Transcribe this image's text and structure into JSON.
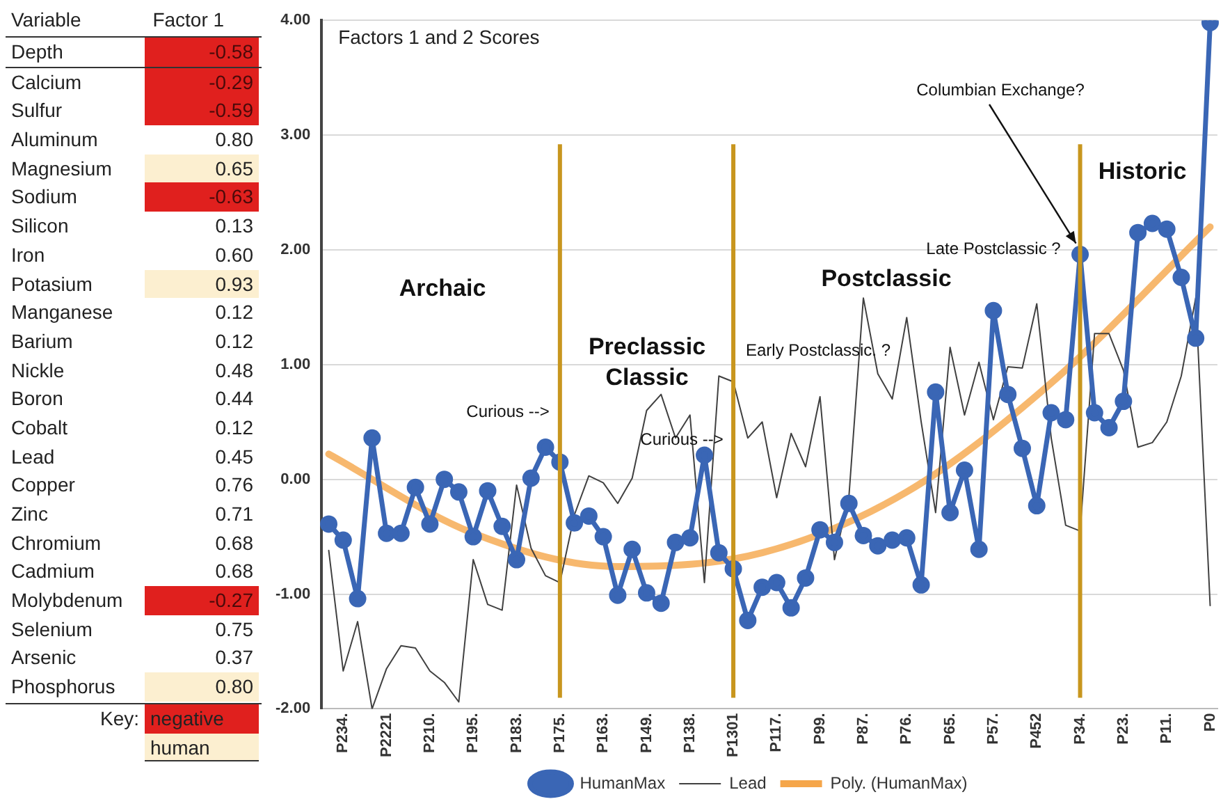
{
  "chart_data": [
    {
      "type": "other",
      "xlabel": "Variable",
      "ylabel": "Factor 1",
      "annotations": [
        "Key:",
        "negative",
        "human"
      ],
      "categories": [
        "Depth",
        "Calcium",
        "Sulfur",
        "Aluminum",
        "Magnesium",
        "Sodium",
        "Silicon",
        "Iron",
        "Potasium",
        "Manganese",
        "Barium",
        "Nickle",
        "Boron",
        "Cobalt",
        "Lead",
        "Copper",
        "Zinc",
        "Chromium",
        "Cadmium",
        "Molybdenum",
        "Selenium",
        "Arsenic",
        "Phosphorus"
      ],
      "values": [
        -0.58,
        -0.29,
        -0.59,
        0.8,
        0.65,
        -0.63,
        0.13,
        0.6,
        0.93,
        0.12,
        0.12,
        0.48,
        0.44,
        0.12,
        0.45,
        0.76,
        0.71,
        0.68,
        0.68,
        -0.27,
        0.75,
        0.37,
        0.8
      ],
      "value_labels": [
        "-0.58",
        "-0.29",
        "-0.59",
        "0.80",
        "0.65",
        "-0.63",
        "0.13",
        "0.60",
        "0.93",
        "0.12",
        "0.12",
        "0.48",
        "0.44",
        "0.12",
        "0.45",
        "0.76",
        "0.71",
        "0.68",
        "0.68",
        "-0.27",
        "0.75",
        "0.37",
        "0.80"
      ],
      "colors": [
        "#e0201e",
        "#e0201e",
        "#e0201e",
        "#ffffff",
        "#fcefd0",
        "#e0201e",
        "#ffffff",
        "#ffffff",
        "#fcefd0",
        "#ffffff",
        "#ffffff",
        "#ffffff",
        "#ffffff",
        "#ffffff",
        "#ffffff",
        "#ffffff",
        "#ffffff",
        "#ffffff",
        "#ffffff",
        "#e0201e",
        "#ffffff",
        "#ffffff",
        "#fcefd0"
      ]
    },
    {
      "type": "line",
      "title": "Factors 1 and 2 Scores",
      "legend": "bottom",
      "grid": "y",
      "line_style": "solid",
      "categories": [
        null,
        "P234.",
        null,
        null,
        "P2221",
        null,
        null,
        "P210.",
        null,
        null,
        "P195.",
        null,
        null,
        "P183.",
        null,
        null,
        "P175.",
        null,
        null,
        "P163.",
        null,
        null,
        "P149.",
        null,
        null,
        "P138.",
        null,
        null,
        "P1301",
        null,
        null,
        "P117.",
        null,
        null,
        "P99.",
        null,
        null,
        "P87.",
        null,
        null,
        "P76.",
        null,
        null,
        "P65.",
        null,
        null,
        "P57.",
        null,
        null,
        "P452",
        null,
        null,
        "P34.",
        null,
        null,
        "P23.",
        null,
        null,
        "P11.",
        null,
        null,
        "P0"
      ],
      "ylim": [
        -2,
        4
      ],
      "yticks": [
        {
          "value": -2,
          "label": "-2.00"
        },
        {
          "value": -1,
          "label": "-1.00"
        },
        {
          "value": 0,
          "label": "0.00"
        },
        {
          "value": 1,
          "label": "1.00"
        },
        {
          "value": 2,
          "label": "2.00"
        },
        {
          "value": 3,
          "label": "3.00"
        },
        {
          "value": 4,
          "label": "4.00"
        }
      ],
      "series": [
        {
          "name": "HumanMax",
          "color": "#3a66b5",
          "marker": "circle",
          "values": [
            -0.39,
            -0.53,
            -1.04,
            0.36,
            -0.47,
            -0.47,
            -0.07,
            -0.39,
            0,
            -0.11,
            -0.5,
            -0.1,
            -0.41,
            -0.7,
            0.01,
            0.28,
            0.15,
            -0.38,
            -0.32,
            -0.5,
            -1.01,
            -0.61,
            -0.99,
            -1.08,
            -0.55,
            -0.51,
            0.21,
            -0.64,
            -0.78,
            -1.23,
            -0.94,
            -0.9,
            -1.12,
            -0.86,
            -0.44,
            -0.55,
            -0.21,
            -0.49,
            -0.58,
            -0.53,
            -0.51,
            -0.92,
            0.76,
            -0.29,
            0.08,
            -0.61,
            1.47,
            0.74,
            0.27,
            -0.23,
            0.58,
            0.52,
            1.96,
            0.58,
            0.45,
            0.68,
            2.15,
            2.23,
            2.18,
            1.76,
            1.23,
            3.98
          ]
        },
        {
          "name": "Lead",
          "color": "#404040",
          "marker": "none",
          "values": [
            -0.62,
            -1.67,
            -1.24,
            -2,
            -1.65,
            -1.45,
            -1.47,
            -1.67,
            -1.77,
            -1.94,
            -0.7,
            -1.09,
            -1.14,
            -0.05,
            -0.6,
            -0.84,
            -0.9,
            -0.31,
            0.03,
            -0.03,
            -0.21,
            0.01,
            0.6,
            0.74,
            0.36,
            0.56,
            -0.9,
            0.9,
            0.85,
            0.36,
            0.5,
            -0.16,
            0.4,
            0.11,
            0.72,
            -0.7,
            -0.15,
            1.58,
            0.92,
            0.7,
            1.41,
            0.5,
            -0.29,
            1.15,
            0.56,
            1.02,
            0.52,
            0.98,
            0.97,
            1.53,
            0.36,
            -0.4,
            -0.45,
            1.27,
            1.27,
            0.95,
            0.28,
            0.32,
            0.5,
            0.9,
            1.58,
            -1.1
          ]
        },
        {
          "name": "Poly. (HumanMax)",
          "type": "line",
          "color": "#f5a64a",
          "marker": "none",
          "values": [
            0.22,
            null,
            null,
            null,
            null,
            null,
            null,
            null,
            null,
            null,
            -0.47,
            null,
            null,
            null,
            null,
            null,
            null,
            null,
            null,
            null,
            -0.76,
            null,
            null,
            null,
            null,
            null,
            null,
            null,
            null,
            null,
            -0.64,
            null,
            null,
            null,
            null,
            null,
            null,
            null,
            null,
            null,
            -0.11,
            null,
            null,
            null,
            null,
            null,
            null,
            null,
            null,
            null,
            0.84,
            null,
            null,
            null,
            null,
            null,
            null,
            null,
            null,
            null,
            null,
            2.2
          ]
        }
      ],
      "ref_lines": [
        {
          "axis": "x",
          "value": "P175.",
          "color": "#c8961e"
        },
        {
          "axis": "x",
          "value": "P1301",
          "color": "#c8961e"
        },
        {
          "axis": "x",
          "value": "P34.",
          "color": "#c8961e"
        }
      ],
      "annotations": [
        "Archaic",
        "Preclassic",
        "Classic",
        "Postclassic",
        "Historic",
        {
          "text": "Columbian Exchange?",
          "x": "P34.",
          "y": 1.96
        },
        "Late Postclassic ?",
        "Early Postclassic. ?",
        "Curious -->",
        "Curious -->"
      ]
    }
  ]
}
